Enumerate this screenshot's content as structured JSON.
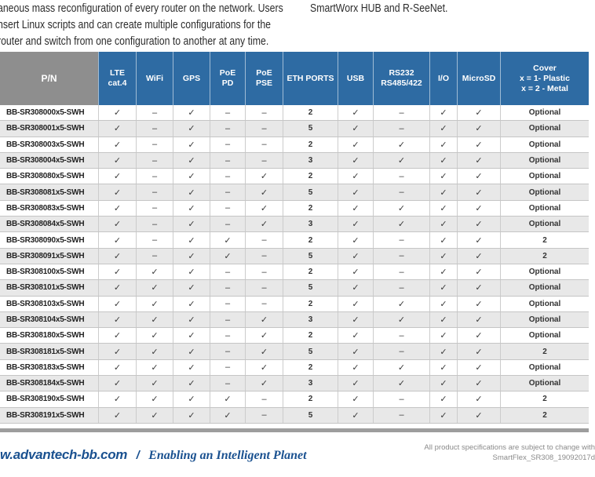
{
  "intro": {
    "left_lines": [
      "aneous mass reconfiguration of every router on the network. Users",
      "nsert Linux scripts and can create multiple configurations for the",
      "router and switch from one configuration to another at any time."
    ],
    "right_line": "SmartWorx HUB and R-SeeNet."
  },
  "table": {
    "header": [
      {
        "key": "pn",
        "lines": [
          "P/N"
        ]
      },
      {
        "key": "lte-cat4",
        "lines": [
          "LTE",
          "cat.4"
        ]
      },
      {
        "key": "wifi",
        "lines": [
          "WiFi"
        ]
      },
      {
        "key": "gps",
        "lines": [
          "GPS"
        ]
      },
      {
        "key": "poe-pd",
        "lines": [
          "PoE",
          "PD"
        ]
      },
      {
        "key": "poe-pse",
        "lines": [
          "PoE",
          "PSE"
        ]
      },
      {
        "key": "eth-ports",
        "lines": [
          "ETH PORTS"
        ]
      },
      {
        "key": "usb",
        "lines": [
          "USB"
        ]
      },
      {
        "key": "rs232-rs485",
        "lines": [
          "RS232",
          "RS485/422"
        ]
      },
      {
        "key": "io",
        "lines": [
          "I/O"
        ]
      },
      {
        "key": "microsd",
        "lines": [
          "MicroSD"
        ]
      },
      {
        "key": "cover",
        "lines": [
          "Cover",
          "x = 1- Plastic",
          "x = 2 - Metal"
        ]
      }
    ],
    "rows": [
      [
        "BB-SR308000x5-SWH",
        "✓",
        "–",
        "✓",
        "–",
        "–",
        "2",
        "✓",
        "–",
        "✓",
        "✓",
        "Optional"
      ],
      [
        "BB-SR308001x5-SWH",
        "✓",
        "–",
        "✓",
        "–",
        "–",
        "5",
        "✓",
        "–",
        "✓",
        "✓",
        "Optional"
      ],
      [
        "BB-SR308003x5-SWH",
        "✓",
        "–",
        "✓",
        "–",
        "–",
        "2",
        "✓",
        "✓",
        "✓",
        "✓",
        "Optional"
      ],
      [
        "BB-SR308004x5-SWH",
        "✓",
        "–",
        "✓",
        "–",
        "–",
        "3",
        "✓",
        "✓",
        "✓",
        "✓",
        "Optional"
      ],
      [
        "BB-SR308080x5-SWH",
        "✓",
        "–",
        "✓",
        "–",
        "✓",
        "2",
        "✓",
        "–",
        "✓",
        "✓",
        "Optional"
      ],
      [
        "BB-SR308081x5-SWH",
        "✓",
        "–",
        "✓",
        "–",
        "✓",
        "5",
        "✓",
        "–",
        "✓",
        "✓",
        "Optional"
      ],
      [
        "BB-SR308083x5-SWH",
        "✓",
        "–",
        "✓",
        "–",
        "✓",
        "2",
        "✓",
        "✓",
        "✓",
        "✓",
        "Optional"
      ],
      [
        "BB-SR308084x5-SWH",
        "✓",
        "–",
        "✓",
        "–",
        "✓",
        "3",
        "✓",
        "✓",
        "✓",
        "✓",
        "Optional"
      ],
      [
        "BB-SR308090x5-SWH",
        "✓",
        "–",
        "✓",
        "✓",
        "–",
        "2",
        "✓",
        "–",
        "✓",
        "✓",
        "2"
      ],
      [
        "BB-SR308091x5-SWH",
        "✓",
        "–",
        "✓",
        "✓",
        "–",
        "5",
        "✓",
        "–",
        "✓",
        "✓",
        "2"
      ],
      [
        "BB-SR308100x5-SWH",
        "✓",
        "✓",
        "✓",
        "–",
        "–",
        "2",
        "✓",
        "–",
        "✓",
        "✓",
        "Optional"
      ],
      [
        "BB-SR308101x5-SWH",
        "✓",
        "✓",
        "✓",
        "–",
        "–",
        "5",
        "✓",
        "–",
        "✓",
        "✓",
        "Optional"
      ],
      [
        "BB-SR308103x5-SWH",
        "✓",
        "✓",
        "✓",
        "–",
        "–",
        "2",
        "✓",
        "✓",
        "✓",
        "✓",
        "Optional"
      ],
      [
        "BB-SR308104x5-SWH",
        "✓",
        "✓",
        "✓",
        "–",
        "✓",
        "3",
        "✓",
        "✓",
        "✓",
        "✓",
        "Optional"
      ],
      [
        "BB-SR308180x5-SWH",
        "✓",
        "✓",
        "✓",
        "–",
        "✓",
        "2",
        "✓",
        "–",
        "✓",
        "✓",
        "Optional"
      ],
      [
        "BB-SR308181x5-SWH",
        "✓",
        "✓",
        "✓",
        "–",
        "✓",
        "5",
        "✓",
        "–",
        "✓",
        "✓",
        "2"
      ],
      [
        "BB-SR308183x5-SWH",
        "✓",
        "✓",
        "✓",
        "–",
        "✓",
        "2",
        "✓",
        "✓",
        "✓",
        "✓",
        "Optional"
      ],
      [
        "BB-SR308184x5-SWH",
        "✓",
        "✓",
        "✓",
        "–",
        "✓",
        "3",
        "✓",
        "✓",
        "✓",
        "✓",
        "Optional"
      ],
      [
        "BB-SR308190x5-SWH",
        "✓",
        "✓",
        "✓",
        "✓",
        "–",
        "2",
        "✓",
        "–",
        "✓",
        "✓",
        "2"
      ],
      [
        "BB-SR308191x5-SWH",
        "✓",
        "✓",
        "✓",
        "✓",
        "–",
        "5",
        "✓",
        "–",
        "✓",
        "✓",
        "2"
      ]
    ],
    "check_symbol": "✓",
    "dash_symbol": "–"
  },
  "footer": {
    "website": "w.advantech-bb.com",
    "slash": "/",
    "tagline": "Enabling an Intelligent Planet",
    "note_line1": "All product specifications are subject to change with",
    "note_line2": "SmartFlex_SR308_19092017d"
  },
  "colors": {
    "header_blue": "#2e6ba3",
    "header_gray": "#8e8e8e",
    "row_alt_gray": "#e8e8e8",
    "brand_blue": "#1a5190",
    "divider_gray": "#9d9d9d"
  }
}
